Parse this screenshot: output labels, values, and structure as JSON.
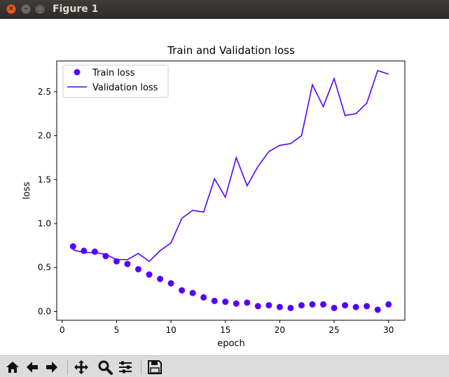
{
  "window": {
    "title": "Figure 1"
  },
  "toolbar": {
    "buttons": [
      {
        "name": "home-icon",
        "label": "Home"
      },
      {
        "name": "back-arrow-icon",
        "label": "Back"
      },
      {
        "name": "forward-arrow-icon",
        "label": "Forward"
      },
      {
        "name": "pan-icon",
        "label": "Pan"
      },
      {
        "name": "zoom-icon",
        "label": "Zoom"
      },
      {
        "name": "configure-subplots-icon",
        "label": "Subplots"
      },
      {
        "name": "save-icon",
        "label": "Save"
      }
    ]
  },
  "chart_data": {
    "type": "line",
    "title": "Train and Validation loss",
    "xlabel": "epoch",
    "ylabel": "loss",
    "xlim": [
      -0.5,
      31.5
    ],
    "ylim": [
      -0.1,
      2.85
    ],
    "xticks": [
      0,
      5,
      10,
      15,
      20,
      25,
      30
    ],
    "yticks": [
      0.0,
      0.5,
      1.0,
      1.5,
      2.0,
      2.5
    ],
    "ytick_labels": [
      "0.0",
      "0.5",
      "1.0",
      "1.5",
      "2.0",
      "2.5"
    ],
    "grid": false,
    "legend_position": "upper-left",
    "color": "#5500ff",
    "x": [
      1,
      2,
      3,
      4,
      5,
      6,
      7,
      8,
      9,
      10,
      11,
      12,
      13,
      14,
      15,
      16,
      17,
      18,
      19,
      20,
      21,
      22,
      23,
      24,
      25,
      26,
      27,
      28,
      29,
      30
    ],
    "series": [
      {
        "name": "Train loss",
        "style": "points",
        "values": [
          0.74,
          0.69,
          0.68,
          0.63,
          0.57,
          0.54,
          0.48,
          0.42,
          0.37,
          0.32,
          0.24,
          0.21,
          0.16,
          0.12,
          0.11,
          0.09,
          0.1,
          0.06,
          0.07,
          0.05,
          0.04,
          0.07,
          0.08,
          0.08,
          0.04,
          0.07,
          0.05,
          0.06,
          0.02,
          0.08
        ]
      },
      {
        "name": "Validation loss",
        "style": "line",
        "values": [
          0.7,
          0.67,
          0.67,
          0.65,
          0.59,
          0.59,
          0.66,
          0.57,
          0.69,
          0.78,
          1.06,
          1.15,
          1.13,
          1.51,
          1.3,
          1.75,
          1.43,
          1.65,
          1.82,
          1.89,
          1.91,
          2.0,
          2.58,
          2.33,
          2.65,
          2.23,
          2.25,
          2.37,
          2.74,
          2.7
        ]
      }
    ]
  }
}
